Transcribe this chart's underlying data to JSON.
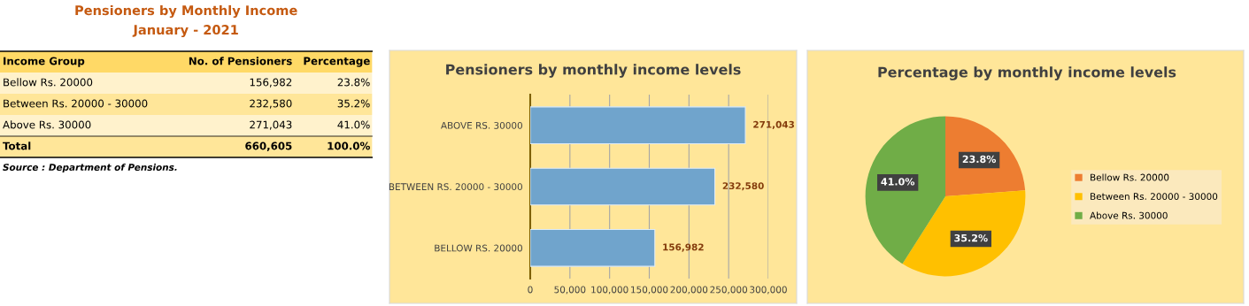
{
  "chart_data": [
    {
      "type": "other",
      "title": "Pensioners by Monthly Income",
      "subtitle": "January - 2021",
      "annotations": [
        "Income Group",
        "No. of Pensioners",
        "Percentage",
        "Bellow Rs. 20000",
        "156,982",
        "23.8%",
        "Between Rs. 20000 - 30000",
        "232,580",
        "35.2%",
        "Above Rs. 30000",
        "271,043",
        "41.0%",
        "Total",
        "660,605",
        "100.0%",
        "Source : Department of Pensions."
      ]
    },
    {
      "type": "bar",
      "orientation": "horizontal",
      "title": "Pensioners by monthly income levels",
      "categories": [
        "ABOVE RS. 30000",
        "BETWEEN RS. 20000 - 30000",
        "BELLOW RS. 20000"
      ],
      "values": [
        271043,
        232580,
        156982
      ],
      "color": "#70a4cc",
      "value_labels": [
        "271,043",
        "232,580",
        "156,982"
      ],
      "xlim": [
        0,
        300000
      ],
      "xticks": [
        0,
        {
          "value": 50000,
          "label": "50,000"
        },
        {
          "value": 100000,
          "label": "100,000"
        },
        {
          "value": 150000,
          "label": "150,000"
        },
        {
          "value": 200000,
          "label": "200,000"
        },
        {
          "value": 250000,
          "label": "250,000"
        },
        {
          "value": 300000,
          "label": "300,000"
        }
      ],
      "grid": "x"
    },
    {
      "type": "pie",
      "title": "Percentage by monthly income levels",
      "categories": [
        "Bellow Rs. 20000",
        "Between Rs. 20000 - 30000",
        "Above Rs. 30000"
      ],
      "values": [
        23.8,
        35.2,
        41.0
      ],
      "colors": [
        "#ed7d31",
        "#ffc000",
        "#70ad47"
      ],
      "value_labels": [
        "23.8%",
        "35.2%",
        "41.0%"
      ],
      "legend": "right"
    }
  ]
}
